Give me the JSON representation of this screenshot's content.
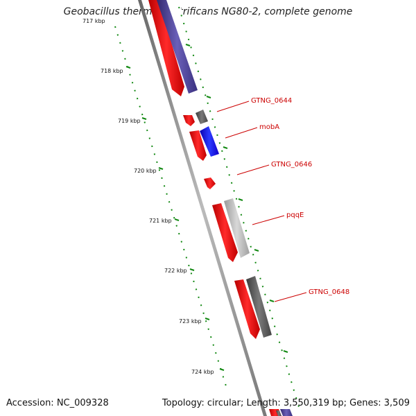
{
  "title": "Geobacillus thermodenitrificans NG80-2, complete genome",
  "footer": {
    "accession": "Accession: NC_009328",
    "topology": "Topology: circular; Length: 3,550,319 bp; Genes: 3,509"
  },
  "colors": {
    "forward_feature": "#ff0000",
    "reverse_feature_blue": "#1a00ff",
    "reverse_feature_navy": "#4a3f99",
    "reverse_feature_dark_gray": "#555555",
    "reverse_feature_light_gray": "#b4b4b4",
    "scale_ticks": "#118811",
    "label_color": "#cc0000"
  },
  "scale_ticks": [
    {
      "label": "717 kbp",
      "kbp": 717
    },
    {
      "label": "718 kbp",
      "kbp": 718
    },
    {
      "label": "719 kbp",
      "kbp": 719
    },
    {
      "label": "720 kbp",
      "kbp": 720
    },
    {
      "label": "721 kbp",
      "kbp": 721
    },
    {
      "label": "722 kbp",
      "kbp": 722
    },
    {
      "label": "723 kbp",
      "kbp": 723
    },
    {
      "label": "724 kbp",
      "kbp": 724
    }
  ],
  "gene_labels": [
    {
      "name": "GTNG_0644"
    },
    {
      "name": "mobA"
    },
    {
      "name": "GTNG_0646"
    },
    {
      "name": "pqqE"
    },
    {
      "name": "GTNG_0648"
    }
  ]
}
